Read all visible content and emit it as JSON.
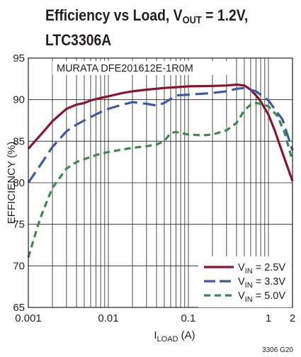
{
  "title": {
    "part1": "Efficiency vs Load, V",
    "sub": "OUT",
    "part2": " = 1.2V,",
    "line2": "LTC3306A"
  },
  "chart_data": {
    "type": "line",
    "title": "Efficiency vs Load, VOUT = 1.2V, LTC3306A",
    "xlabel": {
      "main": "I",
      "sub": "LOAD",
      "rest": " (A)"
    },
    "ylabel": "EFFICIENCY (%)",
    "xscale": "log",
    "xlim": [
      0.001,
      2
    ],
    "ylim": [
      65,
      95
    ],
    "xticks": [
      0.001,
      0.01,
      0.1,
      1,
      2
    ],
    "xtick_labels": [
      "0.001",
      "0.01",
      "0.1",
      "1",
      "2"
    ],
    "yticks": [
      65,
      70,
      75,
      80,
      85,
      90,
      95
    ],
    "ytick_labels": [
      "65",
      "70",
      "75",
      "80",
      "85",
      "90",
      "95"
    ],
    "grid": true,
    "annotation": "MURATA DFE201612E-1R0M",
    "legend_position": "bottom-right",
    "figure_code": "3306 G20",
    "series": [
      {
        "name": "VIN = 2.5V",
        "label": {
          "main": "V",
          "sub": "IN",
          "rest": " = 2.5V"
        },
        "color": "#8b1530",
        "dash": "solid",
        "x": [
          0.001,
          0.0015,
          0.002,
          0.003,
          0.004,
          0.005,
          0.006,
          0.008,
          0.01,
          0.015,
          0.02,
          0.03,
          0.05,
          0.07,
          0.1,
          0.2,
          0.3,
          0.4,
          0.5,
          0.6,
          0.7,
          0.8,
          1.0,
          1.2,
          1.5,
          2.0
        ],
        "y": [
          84.1,
          86.0,
          87.4,
          88.9,
          89.4,
          89.6,
          89.9,
          90.2,
          90.4,
          90.8,
          91.0,
          91.2,
          91.4,
          91.5,
          91.6,
          91.65,
          91.7,
          91.8,
          91.7,
          91.2,
          90.5,
          89.8,
          88.2,
          86.3,
          83.6,
          80.2
        ]
      },
      {
        "name": "VIN = 3.3V",
        "label": {
          "main": "V",
          "sub": "IN",
          "rest": " = 3.3V"
        },
        "color": "#3b5aa8",
        "dash": "long-dash",
        "x": [
          0.001,
          0.0015,
          0.002,
          0.003,
          0.004,
          0.006,
          0.008,
          0.01,
          0.015,
          0.02,
          0.03,
          0.04,
          0.05,
          0.07,
          0.1,
          0.2,
          0.3,
          0.4,
          0.5,
          0.7,
          1.0,
          1.5,
          2.0
        ],
        "y": [
          80.0,
          82.5,
          84.3,
          86.2,
          87.0,
          87.9,
          88.5,
          88.9,
          89.4,
          89.7,
          89.5,
          89.3,
          89.6,
          90.5,
          90.6,
          90.8,
          91.0,
          91.3,
          91.4,
          91.0,
          89.9,
          87.6,
          83.9
        ]
      },
      {
        "name": "VIN = 5.0V",
        "label": {
          "main": "V",
          "sub": "IN",
          "rest": " = 5.0V"
        },
        "color": "#3a8a4a",
        "dash": "short-dash",
        "x": [
          0.001,
          0.0013,
          0.0015,
          0.002,
          0.003,
          0.004,
          0.006,
          0.008,
          0.01,
          0.015,
          0.02,
          0.03,
          0.04,
          0.05,
          0.06,
          0.07,
          0.08,
          0.1,
          0.15,
          0.2,
          0.3,
          0.4,
          0.5,
          0.6,
          0.7,
          0.8,
          1.0,
          1.3,
          1.6,
          2.0
        ],
        "y": [
          71.0,
          74.7,
          76.4,
          79.4,
          81.7,
          82.5,
          83.1,
          83.5,
          83.7,
          84.0,
          84.2,
          84.4,
          84.6,
          85.0,
          86.0,
          86.1,
          86.0,
          85.8,
          85.7,
          85.8,
          86.3,
          87.2,
          88.7,
          89.4,
          89.6,
          89.5,
          89.2,
          88.0,
          86.0,
          82.6
        ]
      }
    ]
  }
}
